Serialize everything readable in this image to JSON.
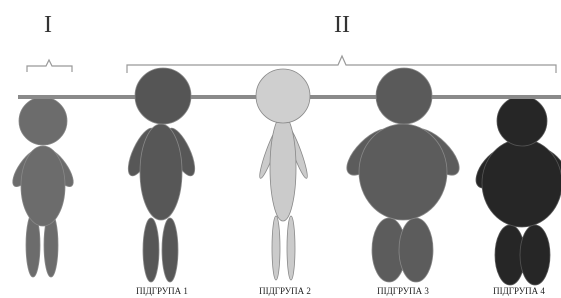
{
  "groups": [
    {
      "label": "I"
    },
    {
      "label": "II"
    }
  ],
  "figures": [
    {
      "label": "ПІДГРУПА 1"
    },
    {
      "label": "ПІДГРУПА 2"
    },
    {
      "label": "ПІДГРУПА 3"
    },
    {
      "label": "ПІДГРУПА 4"
    }
  ]
}
